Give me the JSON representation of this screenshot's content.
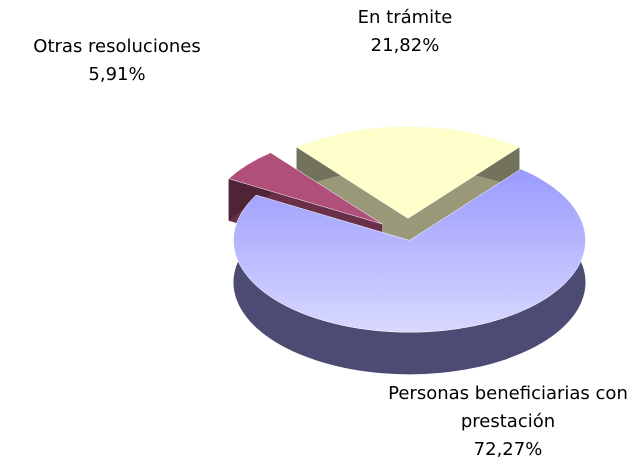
{
  "chart_data": {
    "type": "pie",
    "categories": [
      "En trámite",
      "Personas beneficiarias con prestación",
      "Otras resoluciones"
    ],
    "values": [
      21.82,
      72.27,
      5.91
    ],
    "value_labels": [
      "21,82%",
      "72,27%",
      "5,91%"
    ],
    "colors": [
      "#ffffcc",
      "#a6a6ff",
      "#b0507a"
    ]
  }
}
